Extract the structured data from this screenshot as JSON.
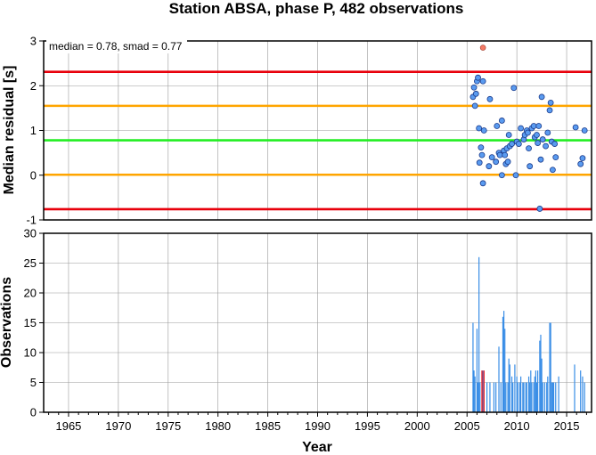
{
  "chart_data": [
    {
      "type": "scatter",
      "title": "Station ABSA, phase P, 482 observations",
      "ylabel": "Median residual [s]",
      "annotation": "median = 0.78, smad = 0.77",
      "xlim": [
        1962.5,
        2017.5
      ],
      "ylim": [
        -1,
        3
      ],
      "yticks": [
        -1,
        0,
        1,
        2,
        3
      ],
      "grid": true,
      "reference_lines": [
        {
          "y": 2.31,
          "color": "#e8000b"
        },
        {
          "y": 1.55,
          "color": "#ffa500"
        },
        {
          "y": 0.78,
          "color": "#22ee22"
        },
        {
          "y": 0.01,
          "color": "#ffa500"
        },
        {
          "y": -0.76,
          "color": "#e8000b"
        }
      ],
      "points": [
        [
          2005.6,
          1.75
        ],
        [
          2005.7,
          1.96
        ],
        [
          2005.8,
          1.55
        ],
        [
          2005.9,
          1.82
        ],
        [
          2006.0,
          2.1
        ],
        [
          2006.1,
          2.18
        ],
        [
          2006.2,
          1.05
        ],
        [
          2006.25,
          0.28
        ],
        [
          2006.4,
          0.62
        ],
        [
          2006.6,
          2.1
        ],
        [
          2006.5,
          0.45
        ],
        [
          2006.6,
          -0.18
        ],
        [
          2006.7,
          1.0
        ],
        [
          2007.2,
          0.2
        ],
        [
          2007.3,
          1.7
        ],
        [
          2007.5,
          0.4
        ],
        [
          2007.9,
          0.3
        ],
        [
          2008.0,
          1.1
        ],
        [
          2008.2,
          0.5
        ],
        [
          2008.3,
          0.45
        ],
        [
          2008.5,
          1.22
        ],
        [
          2008.5,
          0.0
        ],
        [
          2008.7,
          0.55
        ],
        [
          2008.8,
          0.45
        ],
        [
          2008.9,
          0.25
        ],
        [
          2009.0,
          0.6
        ],
        [
          2009.1,
          0.3
        ],
        [
          2009.2,
          0.9
        ],
        [
          2009.3,
          0.65
        ],
        [
          2009.5,
          0.7
        ],
        [
          2009.7,
          1.95
        ],
        [
          2009.9,
          0.0
        ],
        [
          2010.0,
          0.75
        ],
        [
          2010.2,
          0.7
        ],
        [
          2010.4,
          1.05
        ],
        [
          2010.7,
          0.8
        ],
        [
          2010.8,
          0.9
        ],
        [
          2011.0,
          1.0
        ],
        [
          2011.1,
          0.95
        ],
        [
          2011.2,
          0.6
        ],
        [
          2011.3,
          0.2
        ],
        [
          2011.5,
          1.05
        ],
        [
          2011.7,
          1.1
        ],
        [
          2011.8,
          0.85
        ],
        [
          2012.0,
          0.9
        ],
        [
          2012.1,
          0.72
        ],
        [
          2012.2,
          1.1
        ],
        [
          2012.3,
          -0.75
        ],
        [
          2012.4,
          0.35
        ],
        [
          2012.5,
          1.75
        ],
        [
          2012.6,
          0.8
        ],
        [
          2012.9,
          0.65
        ],
        [
          2013.1,
          0.95
        ],
        [
          2013.3,
          1.45
        ],
        [
          2013.4,
          1.62
        ],
        [
          2013.5,
          0.75
        ],
        [
          2013.6,
          0.12
        ],
        [
          2013.8,
          0.7
        ],
        [
          2013.9,
          0.4
        ],
        [
          2015.9,
          1.07
        ],
        [
          2016.4,
          0.25
        ],
        [
          2016.6,
          0.38
        ],
        [
          2016.8,
          1.0
        ]
      ],
      "outliers": [
        [
          2006.6,
          2.85
        ]
      ],
      "point_color": "#5a9bf0",
      "outlier_color": "#f47a66"
    },
    {
      "type": "bar",
      "ylabel": "Observations",
      "xlabel": "Year",
      "xlim": [
        1962.5,
        2017.5
      ],
      "ylim": [
        0,
        30
      ],
      "xticks": [
        1965,
        1970,
        1975,
        1980,
        1985,
        1990,
        1995,
        2000,
        2005,
        2010,
        2015
      ],
      "yticks": [
        0,
        5,
        10,
        15,
        20,
        25,
        30
      ],
      "grid": true,
      "bar_color": "#3a8ee6",
      "highlight_color": "#e8000b",
      "bars": [
        [
          2005.6,
          15
        ],
        [
          2005.7,
          7
        ],
        [
          2005.8,
          6
        ],
        [
          2006.0,
          14
        ],
        [
          2006.1,
          5
        ],
        [
          2006.2,
          26
        ],
        [
          2006.3,
          5
        ],
        [
          2006.6,
          7
        ],
        [
          2007.0,
          5
        ],
        [
          2007.3,
          5
        ],
        [
          2007.7,
          5
        ],
        [
          2007.9,
          5
        ],
        [
          2008.2,
          11
        ],
        [
          2008.4,
          5
        ],
        [
          2008.6,
          16
        ],
        [
          2008.7,
          17
        ],
        [
          2008.8,
          14
        ],
        [
          2008.9,
          5
        ],
        [
          2009.1,
          5
        ],
        [
          2009.2,
          9
        ],
        [
          2009.3,
          8
        ],
        [
          2009.5,
          6
        ],
        [
          2009.6,
          5
        ],
        [
          2009.8,
          8
        ],
        [
          2010.0,
          6
        ],
        [
          2010.1,
          5
        ],
        [
          2010.3,
          5
        ],
        [
          2010.4,
          6
        ],
        [
          2010.6,
          5
        ],
        [
          2010.7,
          5
        ],
        [
          2010.9,
          5
        ],
        [
          2011.0,
          5
        ],
        [
          2011.2,
          6
        ],
        [
          2011.3,
          5
        ],
        [
          2011.4,
          7
        ],
        [
          2011.5,
          5
        ],
        [
          2011.7,
          5
        ],
        [
          2011.8,
          6
        ],
        [
          2011.9,
          7
        ],
        [
          2012.0,
          5
        ],
        [
          2012.1,
          7
        ],
        [
          2012.3,
          12
        ],
        [
          2012.4,
          13
        ],
        [
          2012.5,
          9
        ],
        [
          2012.6,
          5
        ],
        [
          2012.8,
          5
        ],
        [
          2013.0,
          5
        ],
        [
          2013.1,
          6
        ],
        [
          2013.3,
          15
        ],
        [
          2013.4,
          15
        ],
        [
          2013.5,
          5
        ],
        [
          2013.6,
          5
        ],
        [
          2013.7,
          5
        ],
        [
          2013.9,
          5
        ],
        [
          2014.2,
          6
        ],
        [
          2015.8,
          8
        ],
        [
          2016.4,
          7
        ],
        [
          2016.6,
          6
        ],
        [
          2016.8,
          5
        ]
      ],
      "highlight_bars": [
        [
          2006.5,
          7
        ],
        [
          2006.7,
          7
        ]
      ]
    }
  ]
}
